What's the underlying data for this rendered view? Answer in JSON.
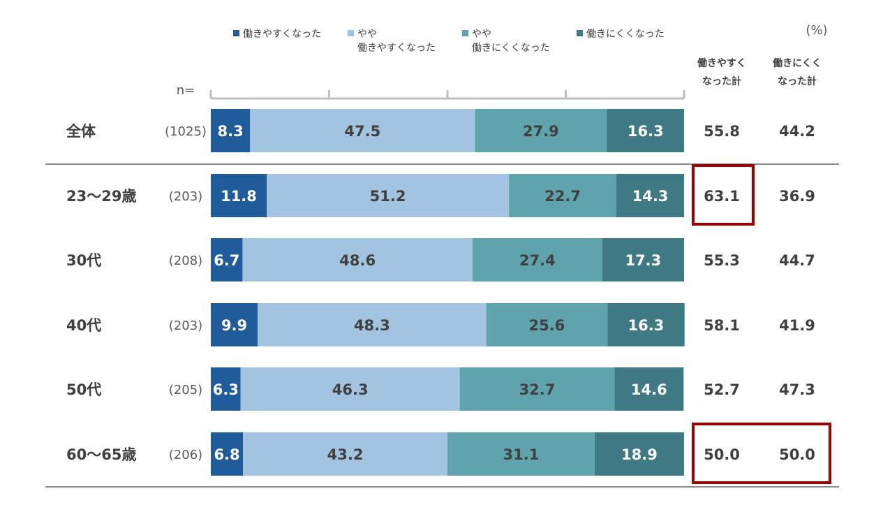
{
  "chart_data": {
    "type": "bar",
    "orientation": "horizontal",
    "stacked": true,
    "unit_label": "(%)",
    "n_prefix": "n=",
    "categories": [
      "全体",
      "23〜29歳",
      "30代",
      "40代",
      "50代",
      "60〜65歳"
    ],
    "n_values": [
      "(1025)",
      "(203)",
      "(208)",
      "(203)",
      "(205)",
      "(206)"
    ],
    "series": [
      {
        "name": "働きやすくなった",
        "name_lines": [
          "働きやすくなった"
        ],
        "color": "#1f5c99",
        "text_color": "#ffffff",
        "values": [
          8.3,
          11.8,
          6.7,
          9.9,
          6.3,
          6.8
        ]
      },
      {
        "name": "やや働きやすくなった",
        "name_lines": [
          "やや",
          "働きやすくなった"
        ],
        "color": "#a3c4e0",
        "text_color": "#404040",
        "values": [
          47.5,
          51.2,
          48.6,
          48.3,
          46.3,
          43.2
        ]
      },
      {
        "name": "やや働きにくくなった",
        "name_lines": [
          "やや",
          "働きにくくなった"
        ],
        "color": "#5fa3ad",
        "text_color": "#404040",
        "values": [
          27.9,
          22.7,
          27.4,
          25.6,
          32.7,
          31.1
        ]
      },
      {
        "name": "働きにくくなった",
        "name_lines": [
          "働きにくくなった"
        ],
        "color": "#3f7a84",
        "text_color": "#ffffff",
        "values": [
          16.3,
          14.3,
          17.3,
          16.3,
          14.6,
          18.9
        ]
      }
    ],
    "totals": {
      "headers": [
        {
          "lines": [
            "働きやすく",
            "なった計"
          ]
        },
        {
          "lines": [
            "働きにくく",
            "なった計"
          ]
        }
      ],
      "easier": [
        "55.8",
        "63.1",
        "55.3",
        "58.1",
        "52.7",
        "50.0"
      ],
      "harder": [
        "44.2",
        "36.9",
        "44.7",
        "41.9",
        "47.3",
        "50.0"
      ]
    },
    "highlights": [
      {
        "row": "23〜29歳",
        "columns": [
          "働きやすくなった計"
        ],
        "color": "#a00000"
      },
      {
        "row": "60〜65歳",
        "columns": [
          "働きやすくなった計",
          "働きにくくなった計"
        ],
        "color": "#a00000"
      }
    ],
    "xlim": [
      0,
      100
    ],
    "x_ticks": [
      0,
      25,
      50,
      75,
      100
    ]
  }
}
